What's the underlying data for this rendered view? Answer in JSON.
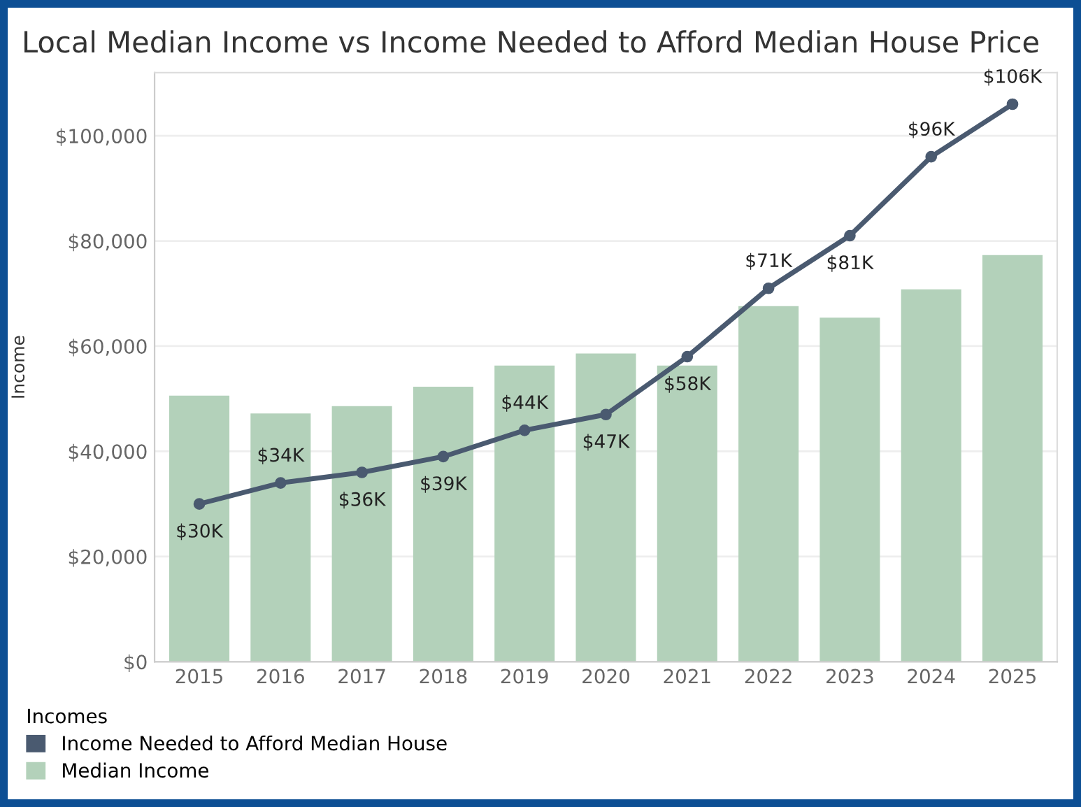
{
  "chart_data": {
    "type": "bar",
    "title": "Local Median Income vs Income Needed to Afford Median House Price",
    "ylabel": "Income",
    "legend_title": "Incomes",
    "categories": [
      "2015",
      "2016",
      "2017",
      "2018",
      "2019",
      "2020",
      "2021",
      "2022",
      "2023",
      "2024",
      "2025"
    ],
    "series": [
      {
        "name": "Income Needed to Afford Median House",
        "type": "line",
        "color": "#4a5a70",
        "marker": "circle",
        "values": [
          30000,
          34000,
          36000,
          39000,
          44000,
          47000,
          58000,
          71000,
          81000,
          96000,
          106000
        ],
        "value_labels": [
          "$30K",
          "$34K",
          "$36K",
          "$39K",
          "$44K",
          "$47K",
          "$58K",
          "$71K",
          "$81K",
          "$96K",
          "$106K"
        ]
      },
      {
        "name": "Median Income",
        "color": "#b3d1ba",
        "values": [
          50600,
          47200,
          48600,
          52300,
          56300,
          58600,
          56300,
          67600,
          65400,
          70800,
          77300
        ]
      }
    ],
    "ylim": [
      0,
      112000
    ],
    "yticks": [
      {
        "value": 0,
        "label": "$0"
      },
      {
        "value": 20000,
        "label": "$20,000"
      },
      {
        "value": 40000,
        "label": "$40,000"
      },
      {
        "value": 60000,
        "label": "$60,000"
      },
      {
        "value": 80000,
        "label": "$80,000"
      },
      {
        "value": 100000,
        "label": "$100,000"
      }
    ],
    "grid": "y",
    "legend": "bottom"
  }
}
